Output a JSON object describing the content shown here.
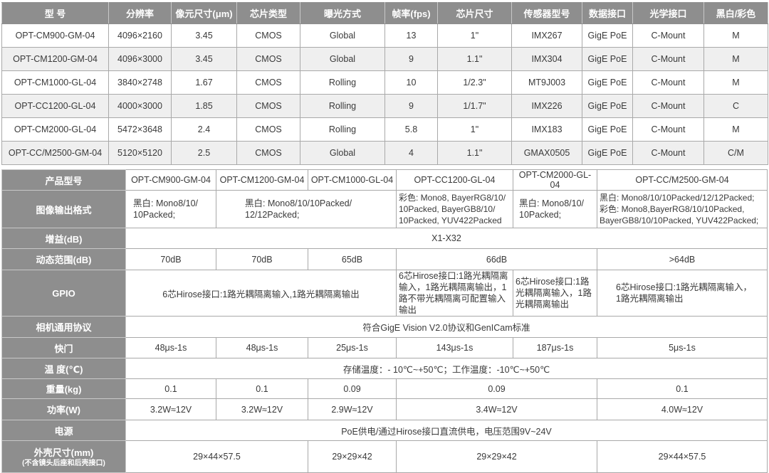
{
  "models_table": {
    "headers": [
      "型 号",
      "分辨率",
      "像元尺寸(μm)",
      "芯片类型",
      "曝光方式",
      "帧率(fps)",
      "芯片尺寸",
      "传感器型号",
      "数据接口",
      "光学接口",
      "黑白/彩色"
    ],
    "rows": [
      [
        "OPT-CM900-GM-04",
        "4096×2160",
        "3.45",
        "CMOS",
        "Global",
        "13",
        "1\"",
        "IMX267",
        "GigE PoE",
        "C-Mount",
        "M"
      ],
      [
        "OPT-CM1200-GM-04",
        "4096×3000",
        "3.45",
        "CMOS",
        "Global",
        "9",
        "1.1\"",
        "IMX304",
        "GigE PoE",
        "C-Mount",
        "M"
      ],
      [
        "OPT-CM1000-GL-04",
        "3840×2748",
        "1.67",
        "CMOS",
        "Rolling",
        "10",
        "1/2.3\"",
        "MT9J003",
        "GigE PoE",
        "C-Mount",
        "M"
      ],
      [
        "OPT-CC1200-GL-04",
        "4000×3000",
        "1.85",
        "CMOS",
        "Rolling",
        "9",
        "1/1.7\"",
        "IMX226",
        "GigE PoE",
        "C-Mount",
        "C"
      ],
      [
        "OPT-CM2000-GL-04",
        "5472×3648",
        "2.4",
        "CMOS",
        "Rolling",
        "5.8",
        "1\"",
        "IMX183",
        "GigE PoE",
        "C-Mount",
        "M"
      ],
      [
        "OPT-CC/M2500-GM-04",
        "5120×5120",
        "2.5",
        "CMOS",
        "Global",
        "4",
        "1.1\"",
        "GMAX0505",
        "GigE PoE",
        "C-Mount",
        "C/M"
      ]
    ]
  },
  "specs_table": {
    "model": {
      "label": "产品型号",
      "values": [
        "OPT-CM900-GM-04",
        "OPT-CM1200-GM-04",
        "OPT-CM1000-GL-04",
        "OPT-CC1200-GL-04",
        "OPT-CM2000-GL-04",
        "OPT-CC/M2500-GM-04"
      ]
    },
    "format": {
      "label": "图像输出格式",
      "values": [
        "黑白: Mono8/10/ 10Packed;",
        "黑白: Mono8/10/10Packed/ 12/12Packed;",
        "彩色: Mono8, BayerRG8/10/ 10Packed, BayerGB8/10/ 10Packed, YUV422Packed",
        "黑白: Mono8/10/ 10Packed;",
        "黑白: Mono8/10/10Packed/12/12Packed; 彩色: Mono8,BayerRG8/10/10Packed, BayerGB8/10/10Packed, YUV422Packed;"
      ]
    },
    "gain": {
      "label": "增益(dB)",
      "value": "X1-X32"
    },
    "dynamic_range": {
      "label": "动态范围(dB)",
      "values": [
        "70dB",
        "70dB",
        "65dB",
        "66dB",
        ">64dB"
      ]
    },
    "gpio": {
      "label": "GPIO",
      "values": [
        "6芯Hirose接口:1路光耦隔离输入,1路光耦隔离输出",
        "6芯Hirose接口:1路光耦隔离输入，1路光耦隔离输出，1路不带光耦隔离可配置输入输出",
        "6芯Hirose接口:1路光耦隔离输入，1路光耦隔离输出",
        "6芯Hirose接口:1路光耦隔离输入，1路光耦隔离输出"
      ]
    },
    "protocol": {
      "label": "相机通用协议",
      "value": "符合GigE Vision V2.0协议和GenICam标准"
    },
    "shutter": {
      "label": "快门",
      "values": [
        "48μs-1s",
        "48μs-1s",
        "25μs-1s",
        "143μs-1s",
        "187μs-1s",
        "5μs-1s"
      ]
    },
    "temperature": {
      "label": "温 度(℃)",
      "value": "存储温度：- 10℃~+50℃；工作温度：-10℃~+50℃"
    },
    "weight": {
      "label": "重量(kg)",
      "values": [
        "0.1",
        "0.1",
        "0.09",
        "0.09",
        "0.1"
      ]
    },
    "power": {
      "label": "功率(W)",
      "values": [
        "3.2W≈12V",
        "3.2W≈12V",
        "2.9W≈12V",
        "3.4W≈12V",
        "4.0W≈12V"
      ]
    },
    "supply": {
      "label": "电源",
      "value": "PoE供电/通过Hirose接口直流供电，电压范围9V~24V"
    },
    "size": {
      "label": "外壳尺寸(mm)",
      "sublabel": "(不含镜头后座和后壳接口)",
      "values": [
        "29×44×57.5",
        "29×29×42",
        "29×29×42",
        "29×44×57.5"
      ]
    }
  }
}
